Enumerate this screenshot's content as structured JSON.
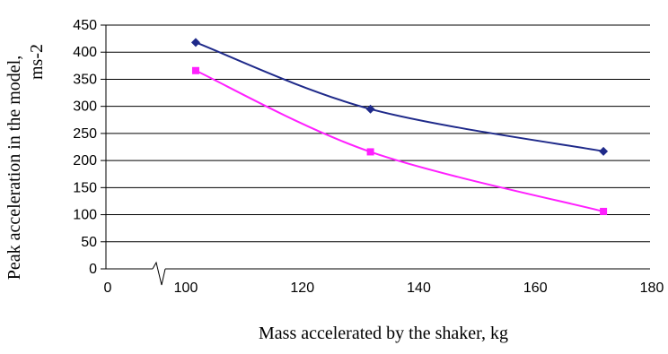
{
  "chart_data": {
    "type": "line",
    "title": "",
    "xlabel": "Mass accelerated by the shaker, kg",
    "ylabel": "Peak acceleration in the model, ms-2",
    "xlim": [
      0,
      180
    ],
    "ylim": [
      0,
      450
    ],
    "x_ticks": [
      "0",
      "100",
      "120",
      "140",
      "160",
      "180"
    ],
    "y_ticks": [
      "0",
      "50",
      "100",
      "150",
      "200",
      "250",
      "300",
      "350",
      "400",
      "450"
    ],
    "axis_break": "between 0 and 100 on x-axis",
    "grid": "horizontal",
    "legend": "none",
    "series": [
      {
        "color": "#1f2a8a",
        "marker": "diamond",
        "x": [
          102,
          132,
          172
        ],
        "y": [
          418,
          295,
          217
        ]
      },
      {
        "color": "#ff20ff",
        "marker": "square",
        "x": [
          102,
          132,
          172
        ],
        "y": [
          366,
          216,
          106
        ]
      }
    ]
  }
}
